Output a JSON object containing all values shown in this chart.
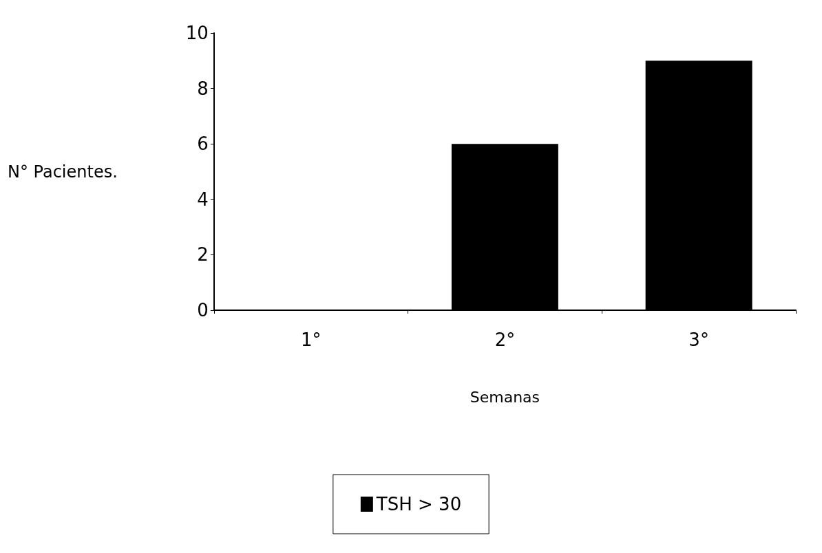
{
  "chart_data": {
    "type": "bar",
    "xlabel": "Semanas",
    "ylabel": "N° Pacientes.",
    "categories": [
      "1°",
      "2°",
      "3°"
    ],
    "series": [
      {
        "name": "TSH > 30",
        "color": "#000000",
        "values": [
          0,
          6,
          9
        ]
      }
    ],
    "ylim": [
      0,
      10
    ],
    "yticks": [
      0,
      2,
      4,
      6,
      8,
      10
    ],
    "grid": false,
    "legend": "bottom"
  }
}
